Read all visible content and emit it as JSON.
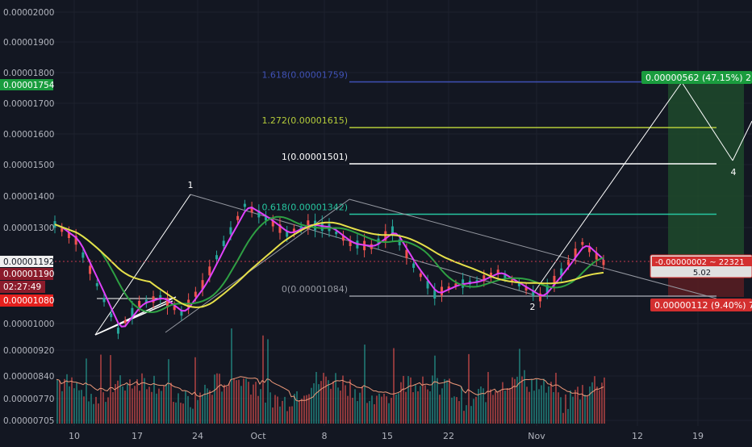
{
  "chart_data": {
    "type": "candlestick",
    "y_axis": {
      "labels": [
        "0.00002000",
        "0.00001900",
        "0.00001800",
        "0.00001700",
        "0.00001600",
        "0.00001500",
        "0.00001400",
        "0.00001300",
        "0.00001000",
        "0.00000920",
        "0.00000840",
        "0.00000770",
        "0.00000705"
      ]
    },
    "x_axis": {
      "labels": [
        "10",
        "17",
        "24",
        "Oct",
        "8",
        "15",
        "22",
        "Nov",
        "12",
        "19"
      ]
    },
    "price_badges": {
      "target": "0.00001754",
      "current": "0.00001192",
      "bid": "0.00001190",
      "countdown": "02:27:49",
      "stop": "0.00001080"
    },
    "fib_levels": [
      {
        "label": "1.618(0.00001759)",
        "price": 1.759e-05,
        "color": "#3f51b5"
      },
      {
        "label": "1.272(0.00001615)",
        "price": 1.615e-05,
        "color": "#b5cc3a"
      },
      {
        "label": "1(0.00001501)",
        "price": 1.501e-05,
        "color": "#ffffff"
      },
      {
        "label": "0.618(0.00001342)",
        "price": 1.342e-05,
        "color": "#26c6a0"
      },
      {
        "label": "0(0.00001084)",
        "price": 1.084e-05,
        "color": "#9598a1"
      }
    ],
    "wave_labels": [
      "1",
      "2",
      "4"
    ],
    "position": {
      "profit_label": "0.00000562 (47.15%) 2",
      "loss_label": "0.00000112 (9.40%) 7",
      "mid_label_top": "-0.00000002 ~ 22321",
      "mid_label_bottom": "5.02"
    },
    "price_series": [
      1.31e-05,
      1.26e-05,
      1.12e-05,
      9.75e-06,
      1.06e-05,
      1.08e-05,
      1.03e-05,
      1.12e-05,
      1.25e-05,
      1.37e-05,
      1.33e-05,
      1.28e-05,
      1.31e-05,
      1.3e-05,
      1.25e-05,
      1.24e-05,
      1.29e-05,
      1.18e-05,
      1.09e-05,
      1.12e-05,
      1.13e-05,
      1.16e-05,
      1.12e-05,
      1.08e-05,
      1.16e-05,
      1.25e-05,
      1.19e-05
    ]
  }
}
